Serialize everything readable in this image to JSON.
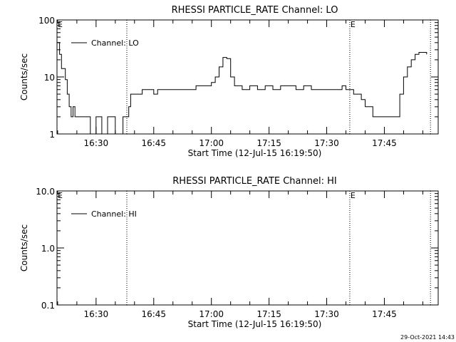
{
  "footer": {
    "timestamp": "29-Oct-2021 14:43"
  },
  "chart_data": [
    {
      "type": "line",
      "title": "RHESSI PARTICLE_RATE Channel: LO",
      "xlabel": "Start Time (12-Jul-15 16:19:50)",
      "ylabel": "Counts/sec",
      "yscale": "log",
      "ylim": [
        1,
        100
      ],
      "xlim": [
        "16:19:50",
        "17:59:00"
      ],
      "y_ticks": [
        1,
        10,
        100
      ],
      "y_tick_labels": [
        "1",
        "10",
        "100"
      ],
      "x_tick_labels": [
        "16:30",
        "16:45",
        "17:00",
        "17:15",
        "17:30",
        "17:45"
      ],
      "legend_position": "top-left",
      "event_markers": [
        {
          "time": "16:38",
          "label": ""
        },
        {
          "time": "17:36",
          "label": "E"
        },
        {
          "time": "17:57",
          "label": ""
        }
      ],
      "start_marker_label": "E",
      "series": [
        {
          "name": "Channel: LO",
          "x": [
            "16:19:50",
            "16:20:30",
            "16:21:00",
            "16:22:00",
            "16:22:30",
            "16:23:00",
            "16:23:30",
            "16:24:00",
            "16:24:30",
            "16:25:00",
            "16:25:30",
            "16:26:00",
            "16:26:30",
            "16:27:00",
            "16:28:00",
            "16:28:30",
            "16:29:00",
            "16:30:00",
            "16:31:00",
            "16:31:30",
            "16:32:00",
            "16:33:00",
            "16:34:00",
            "16:35:00",
            "16:36:00",
            "16:37:00",
            "16:38:00",
            "16:38:30",
            "16:39:00",
            "16:40:00",
            "16:41:00",
            "16:42:00",
            "16:43:00",
            "16:44:00",
            "16:45:00",
            "16:46:00",
            "16:48:00",
            "16:50:00",
            "16:52:00",
            "16:54:00",
            "16:56:00",
            "16:58:00",
            "17:00:00",
            "17:01:00",
            "17:02:00",
            "17:03:00",
            "17:04:00",
            "17:05:00",
            "17:06:00",
            "17:07:00",
            "17:08:00",
            "17:10:00",
            "17:12:00",
            "17:14:00",
            "17:16:00",
            "17:18:00",
            "17:20:00",
            "17:22:00",
            "17:24:00",
            "17:26:00",
            "17:28:00",
            "17:30:00",
            "17:32:00",
            "17:34:00",
            "17:35:00",
            "17:36:00",
            "17:37:00",
            "17:38:00",
            "17:39:00",
            "17:40:00",
            "17:42:00",
            "17:44:00",
            "17:45:00",
            "17:46:00",
            "17:47:00",
            "17:48:00",
            "17:49:00",
            "17:50:00",
            "17:51:00",
            "17:52:00",
            "17:53:00",
            "17:54:00",
            "17:55:00",
            "17:56:00"
          ],
          "y": [
            40,
            25,
            14,
            9,
            5,
            3,
            2,
            3,
            2,
            2,
            2,
            2,
            2,
            2,
            2,
            1,
            1,
            2,
            2,
            1,
            1,
            2,
            2,
            1,
            1,
            2,
            2,
            3,
            5,
            5,
            5,
            6,
            6,
            6,
            5,
            6,
            6,
            6,
            6,
            6,
            7,
            7,
            8,
            10,
            15,
            22,
            21,
            10,
            7,
            7,
            6,
            7,
            6,
            7,
            6,
            7,
            7,
            6,
            7,
            6,
            6,
            6,
            6,
            7,
            6,
            6,
            5,
            5,
            4,
            3,
            2,
            2,
            2,
            2,
            2,
            2,
            5,
            10,
            15,
            20,
            25,
            27,
            27,
            25
          ]
        }
      ]
    },
    {
      "type": "line",
      "title": "RHESSI PARTICLE_RATE Channel: HI",
      "xlabel": "Start Time (12-Jul-15 16:19:50)",
      "ylabel": "Counts/sec",
      "yscale": "log",
      "ylim": [
        0.1,
        10
      ],
      "xlim": [
        "16:19:50",
        "17:59:00"
      ],
      "y_ticks": [
        0.1,
        1,
        10
      ],
      "y_tick_labels": [
        "0.1",
        "1.0",
        "10.0"
      ],
      "x_tick_labels": [
        "16:30",
        "16:45",
        "17:00",
        "17:15",
        "17:30",
        "17:45"
      ],
      "legend_position": "top-left",
      "event_markers": [
        {
          "time": "16:38",
          "label": ""
        },
        {
          "time": "17:36",
          "label": "E"
        },
        {
          "time": "17:57",
          "label": ""
        }
      ],
      "start_marker_label": "E",
      "series": [
        {
          "name": "Channel: HI",
          "x": [],
          "y": []
        }
      ]
    }
  ]
}
